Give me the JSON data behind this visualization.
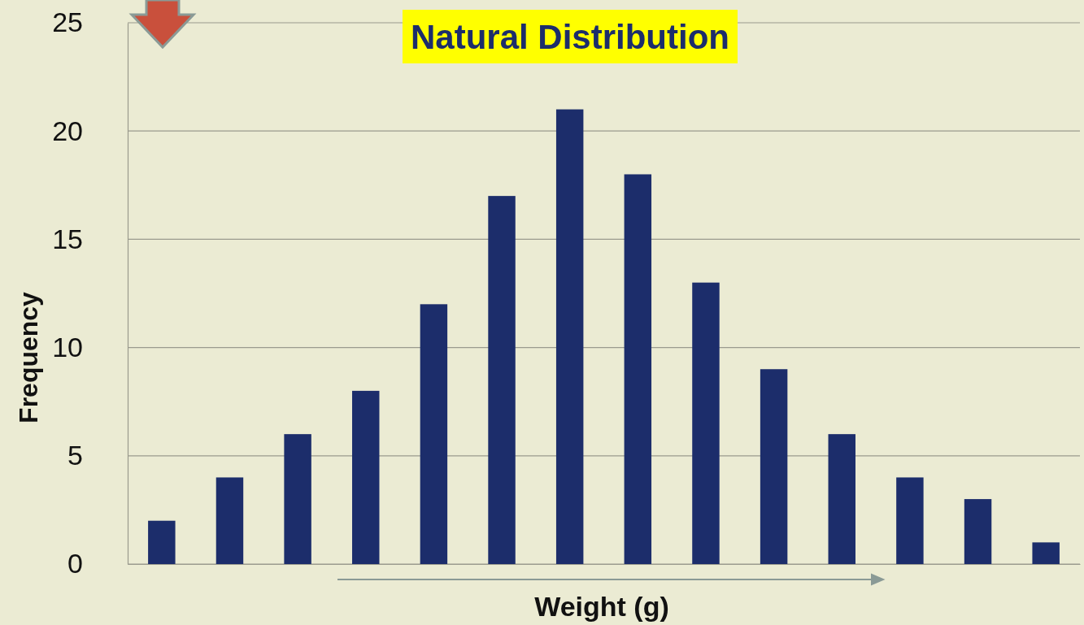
{
  "chart_data": {
    "type": "bar",
    "title": "Natural Distribution",
    "xlabel": "Weight (g)",
    "ylabel": "Frequency",
    "categories": [
      null,
      null,
      null,
      null,
      null,
      null,
      null,
      null,
      null,
      null,
      null,
      null,
      null,
      null
    ],
    "values": [
      2,
      4,
      6,
      8,
      12,
      17,
      21,
      18,
      13,
      9,
      6,
      4,
      3,
      1
    ],
    "color": "#1c2d6b",
    "ylim": [
      0,
      25
    ],
    "yticks": [
      0,
      5,
      10,
      15,
      20,
      25
    ],
    "grid": "y"
  }
}
